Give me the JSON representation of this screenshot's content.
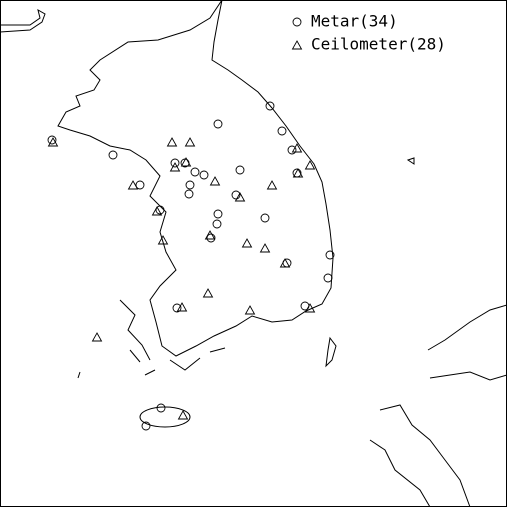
{
  "legend": {
    "items": [
      {
        "label": "Metar(34)"
      },
      {
        "label": "Ceilometer(28)"
      }
    ]
  }
}
